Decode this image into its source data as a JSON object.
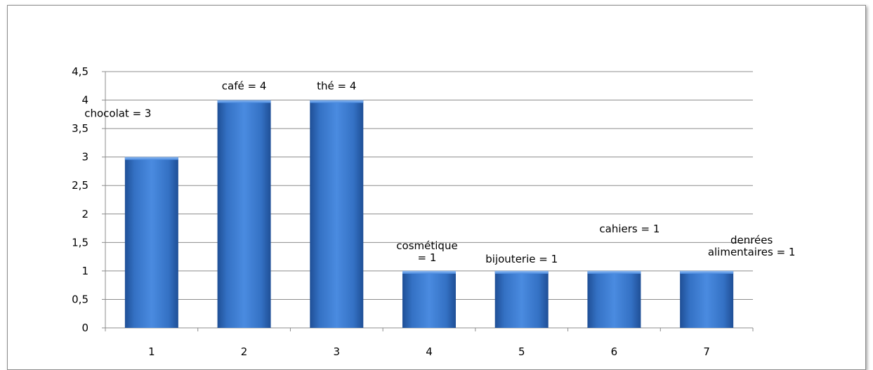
{
  "chart_data": {
    "type": "bar",
    "categories": [
      "1",
      "2",
      "3",
      "4",
      "5",
      "6",
      "7"
    ],
    "values": [
      3,
      4,
      4,
      1,
      1,
      1,
      1
    ],
    "data_labels": [
      [
        "chocolat = 3"
      ],
      [
        "café = 4"
      ],
      [
        "thé = 4"
      ],
      [
        "cosmétique",
        "= 1"
      ],
      [
        "bijouterie = 1"
      ],
      [
        "cahiers = 1"
      ],
      [
        "denrées",
        "alimentaires = 1"
      ]
    ],
    "y_ticks": [
      "0",
      "0,5",
      "1",
      "1,5",
      "2",
      "2,5",
      "3",
      "3,5",
      "4",
      "4,5"
    ],
    "ylim": [
      0,
      4.5
    ],
    "grid": true,
    "legend": "none",
    "bar_color": "#3f7fd0"
  }
}
